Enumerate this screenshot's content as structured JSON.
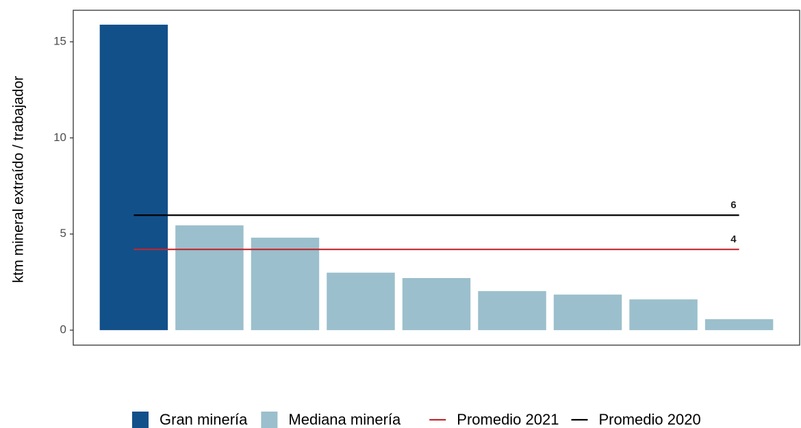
{
  "chart_data": {
    "type": "bar",
    "y_label": "ktm mineral extraído / trabajador",
    "categories": [
      null,
      null,
      null,
      null,
      null,
      null,
      null,
      null,
      null
    ],
    "series": [
      {
        "name": "Gran minería",
        "color": "#12508a",
        "values": [
          15.89,
          null,
          null,
          null,
          null,
          null,
          null,
          null,
          null
        ]
      },
      {
        "name": "Mediana minería",
        "color": "#9bbfcc",
        "values": [
          null,
          5.45,
          4.81,
          2.99,
          2.71,
          2.03,
          1.85,
          1.6,
          0.57
        ]
      }
    ],
    "hlines": [
      {
        "name": "Promedio 2021",
        "color": "#c0272d",
        "values": [
          4.2
        ],
        "value_labels": [
          "4"
        ]
      },
      {
        "name": "Promedio 2020",
        "color": "#000000",
        "values": [
          5.98
        ],
        "value_labels": [
          "6"
        ]
      }
    ],
    "ylim": [
      -0.78,
      16.64
    ],
    "yticks": [
      0,
      5,
      10,
      15
    ],
    "grid": false,
    "legend": "bottom"
  }
}
